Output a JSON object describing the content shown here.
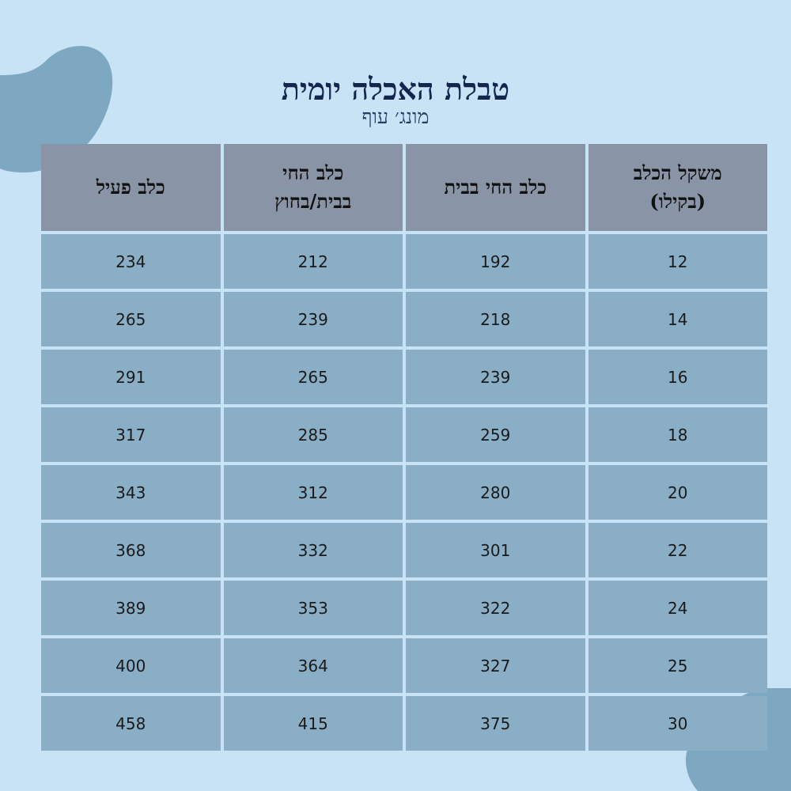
{
  "header": {
    "title": "טבלת האכלה יומית",
    "subtitle": "מונג׳ עוף"
  },
  "colors": {
    "background": "#c7e3f5",
    "blob": "#7ea8c2",
    "header_cell": "#8995a6",
    "body_cell": "#8aaec6",
    "title_text": "#14254e"
  },
  "table": {
    "columns": [
      "משקל הכלב\n(בקילו)",
      "כלב החי בבית",
      "כלב החי\nבבית/בחוץ",
      "כלב פעיל"
    ],
    "rows": [
      [
        "12",
        "192",
        "212",
        "234"
      ],
      [
        "14",
        "218",
        "239",
        "265"
      ],
      [
        "16",
        "239",
        "265",
        "291"
      ],
      [
        "18",
        "259",
        "285",
        "317"
      ],
      [
        "20",
        "280",
        "312",
        "343"
      ],
      [
        "22",
        "301",
        "332",
        "368"
      ],
      [
        "24",
        "322",
        "353",
        "389"
      ],
      [
        "25",
        "327",
        "364",
        "400"
      ],
      [
        "30",
        "375",
        "415",
        "458"
      ]
    ]
  }
}
